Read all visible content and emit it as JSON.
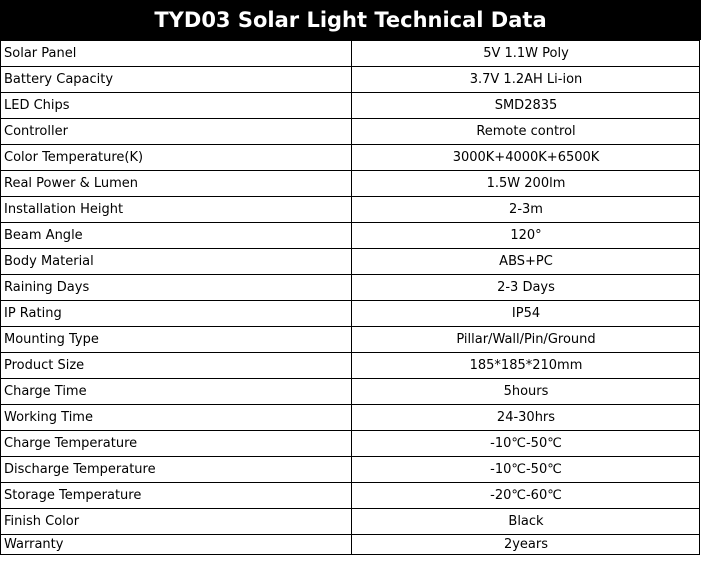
{
  "table": {
    "title": "TYD03 Solar Light Technical Data",
    "rows": [
      [
        "Solar Panel",
        "5V 1.1W Poly"
      ],
      [
        "Battery Capacity",
        "3.7V 1.2AH Li-ion"
      ],
      [
        "LED Chips",
        "SMD2835"
      ],
      [
        "Controller",
        "Remote control"
      ],
      [
        "Color Temperature(K)",
        "3000K+4000K+6500K"
      ],
      [
        "Real Power & Lumen",
        "1.5W 200lm"
      ],
      [
        "Installation Height",
        "2-3m"
      ],
      [
        "Beam Angle",
        "120°"
      ],
      [
        "Body Material",
        "ABS+PC"
      ],
      [
        "Raining Days",
        "2-3 Days"
      ],
      [
        "IP Rating",
        "IP54"
      ],
      [
        "Mounting Type",
        "Pillar/Wall/Pin/Ground"
      ],
      [
        "Product Size",
        "185*185*210mm"
      ],
      [
        "Charge Time",
        "5hours"
      ],
      [
        "Working Time",
        "24-30hrs"
      ],
      [
        "Charge Temperature",
        "-10℃-50℃"
      ],
      [
        "Discharge Temperature",
        "-10℃-50℃"
      ],
      [
        "Storage Temperature",
        "-20℃-60℃"
      ],
      [
        "Finish Color",
        "Black"
      ],
      [
        "Warranty",
        "2years"
      ]
    ]
  }
}
